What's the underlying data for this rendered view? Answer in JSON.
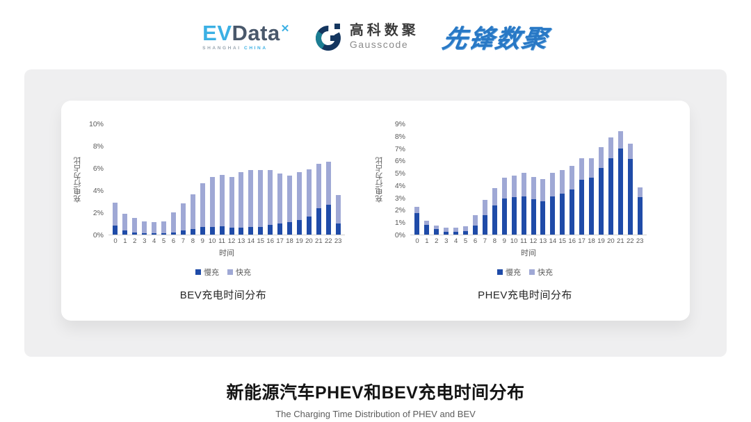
{
  "logos": {
    "evdata": {
      "ev": "EV",
      "data": "Data",
      "star": "✕",
      "sub_left": "SHANGHAI",
      "sub_right": "CHINA"
    },
    "gausscode": {
      "cn": "高科数聚",
      "en": "Gausscode"
    },
    "pioneer": {
      "text": "先锋数聚"
    }
  },
  "colors": {
    "slow_charge": "#1F4BA8",
    "fast_charge": "#9FA8D5",
    "panel_gray": "#EFEFF0",
    "axis_text": "#595959",
    "evdata_blue": "#3BB0E4",
    "gauss_navy": "#14365F",
    "gauss_teal": "#1B7E93",
    "pioneer_blue": "#2878C5"
  },
  "chart_data": [
    {
      "type": "bar",
      "stacked": true,
      "title": "BEV充电时间分布",
      "xlabel": "时间",
      "ylabel": "充电行为占比",
      "ylim": [
        0,
        10
      ],
      "ytick_step": 2,
      "ytick_suffix": "%",
      "grid": false,
      "legend_position": "bottom",
      "categories": [
        0,
        1,
        2,
        3,
        4,
        5,
        6,
        7,
        8,
        9,
        10,
        11,
        12,
        13,
        14,
        15,
        16,
        17,
        18,
        19,
        20,
        21,
        22,
        23
      ],
      "series": [
        {
          "name": "慢充",
          "color": "#1F4BA8",
          "values": [
            0.8,
            0.4,
            0.2,
            0.1,
            0.1,
            0.1,
            0.2,
            0.4,
            0.5,
            0.7,
            0.7,
            0.75,
            0.6,
            0.65,
            0.7,
            0.7,
            0.85,
            1.0,
            1.1,
            1.3,
            1.65,
            2.35,
            2.7,
            1.0
          ]
        },
        {
          "name": "快充",
          "color": "#9FA8D5",
          "values": [
            2.1,
            1.5,
            1.3,
            1.1,
            1.0,
            1.1,
            1.8,
            2.4,
            3.1,
            3.9,
            4.5,
            4.6,
            4.6,
            4.95,
            5.1,
            5.1,
            4.95,
            4.5,
            4.2,
            4.3,
            4.25,
            4.05,
            3.85,
            2.55
          ]
        }
      ]
    },
    {
      "type": "bar",
      "stacked": true,
      "title": "PHEV充电时间分布",
      "xlabel": "时间",
      "ylabel": "充电行为占比",
      "ylim": [
        0,
        9
      ],
      "ytick_step": 1,
      "ytick_suffix": "%",
      "grid": false,
      "legend_position": "bottom",
      "categories": [
        0,
        1,
        2,
        3,
        4,
        5,
        6,
        7,
        8,
        9,
        10,
        11,
        12,
        13,
        14,
        15,
        16,
        17,
        18,
        19,
        20,
        21,
        22,
        23
      ],
      "series": [
        {
          "name": "慢充",
          "color": "#1F4BA8",
          "values": [
            1.75,
            0.8,
            0.45,
            0.25,
            0.25,
            0.3,
            0.75,
            1.6,
            2.35,
            2.9,
            3.05,
            3.1,
            2.85,
            2.7,
            3.1,
            3.3,
            3.65,
            4.45,
            4.6,
            5.4,
            6.2,
            7.0,
            6.15,
            3.05
          ]
        },
        {
          "name": "快充",
          "color": "#9FA8D5",
          "values": [
            0.5,
            0.35,
            0.3,
            0.3,
            0.3,
            0.4,
            0.85,
            1.2,
            1.4,
            1.7,
            1.75,
            1.9,
            1.8,
            1.8,
            1.9,
            1.95,
            1.9,
            1.75,
            1.6,
            1.7,
            1.7,
            1.4,
            1.2,
            0.8
          ]
        }
      ]
    }
  ],
  "footer": {
    "title": "新能源汽车PHEV和BEV充电时间分布",
    "subtitle": "The Charging Time Distribution of PHEV and BEV"
  }
}
